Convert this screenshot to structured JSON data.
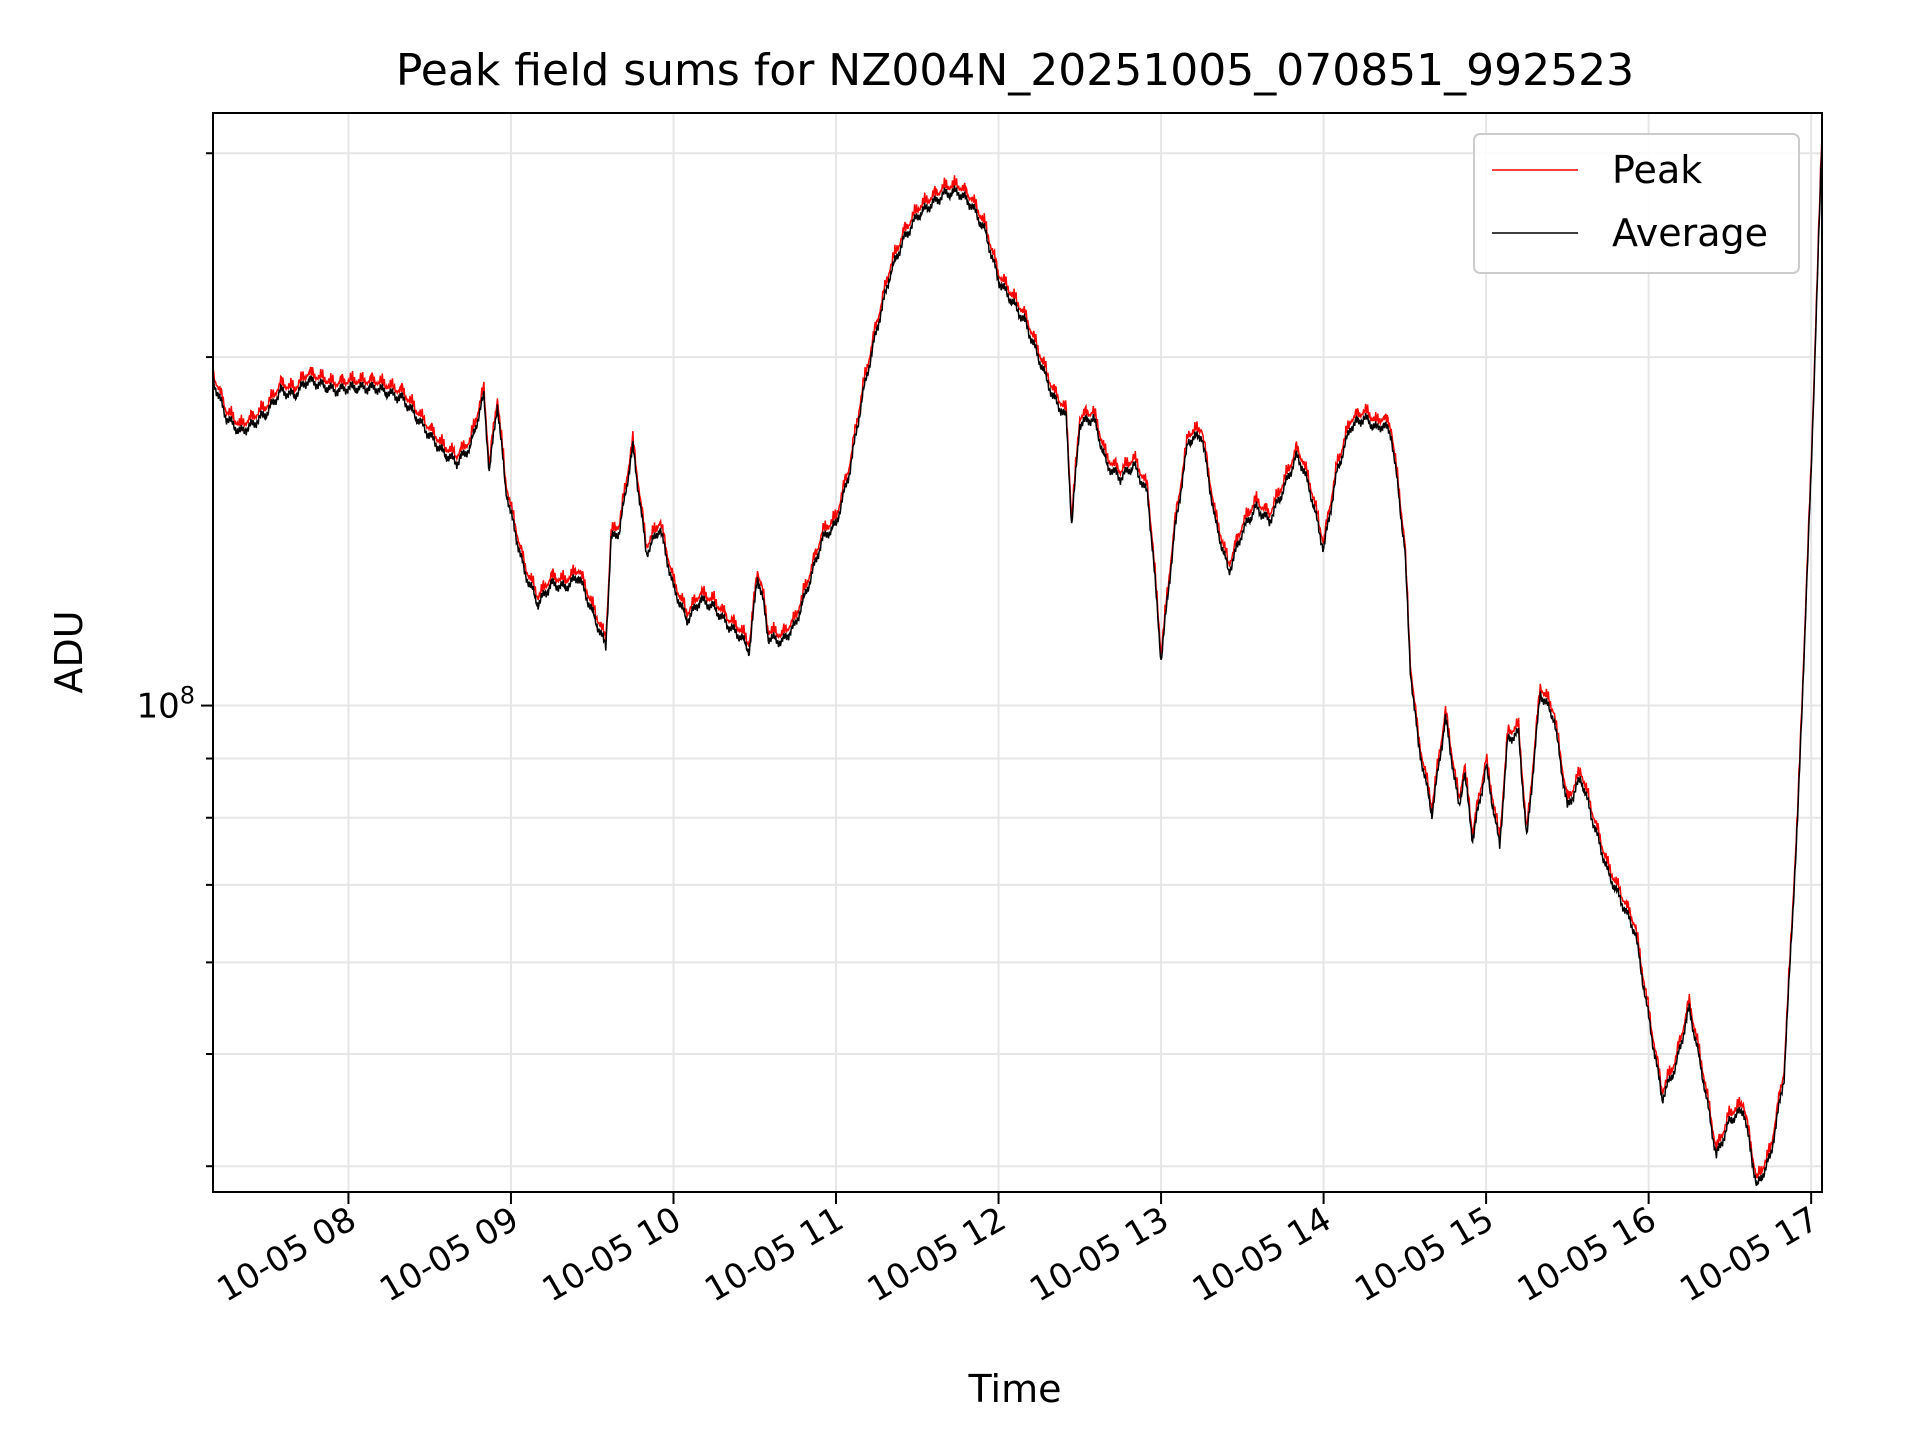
{
  "chart_data": {
    "type": "line",
    "title": "Peak field sums for NZ004N_20251005_070851_992523",
    "xlabel": "Time",
    "ylabel": "ADU",
    "yscale": "log",
    "grid": true,
    "legend_position": "top-right",
    "x_ticks": [
      "10-05 08",
      "10-05 09",
      "10-05 10",
      "10-05 11",
      "10-05 12",
      "10-05 13",
      "10-05 14",
      "10-05 15",
      "10-05 16",
      "10-05 17"
    ],
    "y_tick_major": {
      "base": "10",
      "exponent": "8"
    },
    "x_range": [
      "2025-10-05 07:10",
      "2025-10-05 17:04"
    ],
    "y_range": [
      38000000,
      325000000
    ],
    "colors": {
      "Peak": "#ff0000",
      "Average": "#000000"
    },
    "series": [
      {
        "name": "Peak"
      },
      {
        "name": "Average"
      }
    ],
    "x": [
      "07:10",
      "07:15",
      "07:20",
      "07:25",
      "07:30",
      "07:35",
      "07:40",
      "07:45",
      "07:50",
      "07:55",
      "08:00",
      "08:10",
      "08:20",
      "08:30",
      "08:35",
      "08:40",
      "08:45",
      "08:50",
      "08:52",
      "08:55",
      "08:58",
      "09:00",
      "09:05",
      "09:10",
      "09:15",
      "09:20",
      "09:25",
      "09:30",
      "09:35",
      "09:37",
      "09:40",
      "09:45",
      "09:48",
      "09:50",
      "09:55",
      "10:00",
      "10:05",
      "10:10",
      "10:15",
      "10:20",
      "10:25",
      "10:28",
      "10:31",
      "10:33",
      "10:35",
      "10:40",
      "10:45",
      "10:50",
      "10:55",
      "11:00",
      "11:05",
      "11:10",
      "11:15",
      "11:20",
      "11:25",
      "11:30",
      "11:35",
      "11:40",
      "11:45",
      "11:50",
      "11:55",
      "12:00",
      "12:10",
      "12:20",
      "12:25",
      "12:27",
      "12:30",
      "12:35",
      "12:40",
      "12:45",
      "12:50",
      "12:55",
      "12:57",
      "13:00",
      "13:05",
      "13:10",
      "13:15",
      "13:20",
      "13:25",
      "13:30",
      "13:35",
      "13:40",
      "13:45",
      "13:50",
      "13:52",
      "13:55",
      "14:00",
      "14:05",
      "14:10",
      "14:15",
      "14:20",
      "14:22",
      "14:25",
      "14:27",
      "14:30",
      "14:32",
      "14:35",
      "14:40",
      "14:45",
      "14:50",
      "14:52",
      "14:55",
      "15:00",
      "15:05",
      "15:08",
      "15:12",
      "15:15",
      "15:20",
      "15:25",
      "15:30",
      "15:35",
      "15:40",
      "15:45",
      "15:50",
      "15:55",
      "16:00",
      "16:05",
      "16:10",
      "16:15",
      "16:20",
      "16:25",
      "16:30",
      "16:35",
      "16:40",
      "16:45",
      "16:50",
      "16:55",
      "17:00",
      "17:04"
    ],
    "values": [
      192000000,
      178000000,
      173000000,
      176000000,
      180000000,
      188000000,
      186000000,
      192000000,
      190000000,
      188000000,
      189000000,
      189000000,
      185000000,
      172000000,
      166000000,
      163000000,
      168000000,
      186000000,
      160000000,
      183000000,
      155000000,
      147000000,
      131000000,
      123000000,
      128000000,
      127000000,
      130000000,
      121000000,
      113000000,
      140000000,
      142000000,
      168000000,
      148000000,
      136000000,
      143000000,
      127000000,
      119000000,
      124000000,
      122000000,
      118000000,
      115000000,
      112000000,
      130000000,
      124000000,
      115000000,
      114000000,
      118000000,
      128000000,
      140000000,
      144000000,
      160000000,
      187000000,
      212000000,
      237000000,
      254000000,
      266000000,
      272000000,
      278000000,
      279000000,
      272000000,
      258000000,
      234000000,
      215000000,
      186000000,
      178000000,
      144000000,
      176000000,
      178000000,
      162000000,
      158000000,
      162000000,
      153000000,
      136000000,
      110000000,
      142000000,
      170000000,
      172000000,
      145000000,
      131000000,
      142000000,
      149000000,
      145000000,
      154000000,
      165000000,
      162000000,
      154000000,
      137000000,
      160000000,
      175000000,
      178000000,
      174000000,
      176000000,
      172000000,
      158000000,
      137000000,
      108000000,
      93000000,
      81000000,
      98000000,
      82000000,
      88000000,
      77000000,
      89000000,
      76000000,
      94000000,
      95000000,
      77000000,
      103000000,
      98000000,
      82000000,
      87000000,
      79000000,
      72000000,
      68000000,
      64000000,
      54000000,
      46000000,
      49000000,
      55000000,
      48000000,
      41000000,
      44000000,
      45000000,
      38500000,
      41000000,
      48000000,
      80000000,
      160000000,
      310000000
    ]
  }
}
